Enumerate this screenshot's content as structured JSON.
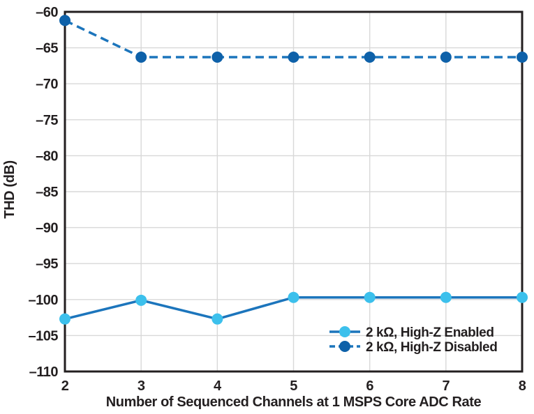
{
  "chart_data": {
    "type": "line",
    "title": "",
    "xlabel": "Number of Sequenced Channels at 1 MSPS Core ADC Rate",
    "ylabel": "THD (dB)",
    "x": [
      2,
      3,
      4,
      5,
      6,
      7,
      8
    ],
    "xlim": [
      2,
      8
    ],
    "ylim": [
      -110,
      -60
    ],
    "x_ticks": [
      2,
      3,
      4,
      5,
      6,
      7,
      8
    ],
    "x_tick_labels": [
      "2",
      "3",
      "4",
      "5",
      "6",
      "7",
      "8"
    ],
    "y_ticks": [
      -60,
      -65,
      -70,
      -75,
      -80,
      -85,
      -90,
      -95,
      -100,
      -105,
      -110
    ],
    "y_tick_labels": [
      "–60",
      "–65",
      "–70",
      "–75",
      "–80",
      "–85",
      "–90",
      "–95",
      "–100",
      "–105",
      "–110"
    ],
    "grid": true,
    "legend_position": "inside-bottom-right",
    "series": [
      {
        "name": "2 kΩ, High-Z Enabled",
        "values": [
          -102.7,
          -100.1,
          -102.7,
          -99.7,
          -99.7,
          -99.7,
          -99.7
        ],
        "line_color": "#1c75bc",
        "marker_color": "#3cc0ec",
        "dash": "solid"
      },
      {
        "name": "2 kΩ, High-Z Disabled",
        "values": [
          -61.2,
          -66.3,
          -66.3,
          -66.3,
          -66.3,
          -66.3,
          -66.3
        ],
        "line_color": "#1c75bc",
        "marker_color": "#0e61a9",
        "dash": "dashed"
      }
    ],
    "colors": {
      "grid": "#d8d8d8",
      "frame": "#231f20",
      "text": "#231f20",
      "background": "#ffffff"
    }
  }
}
